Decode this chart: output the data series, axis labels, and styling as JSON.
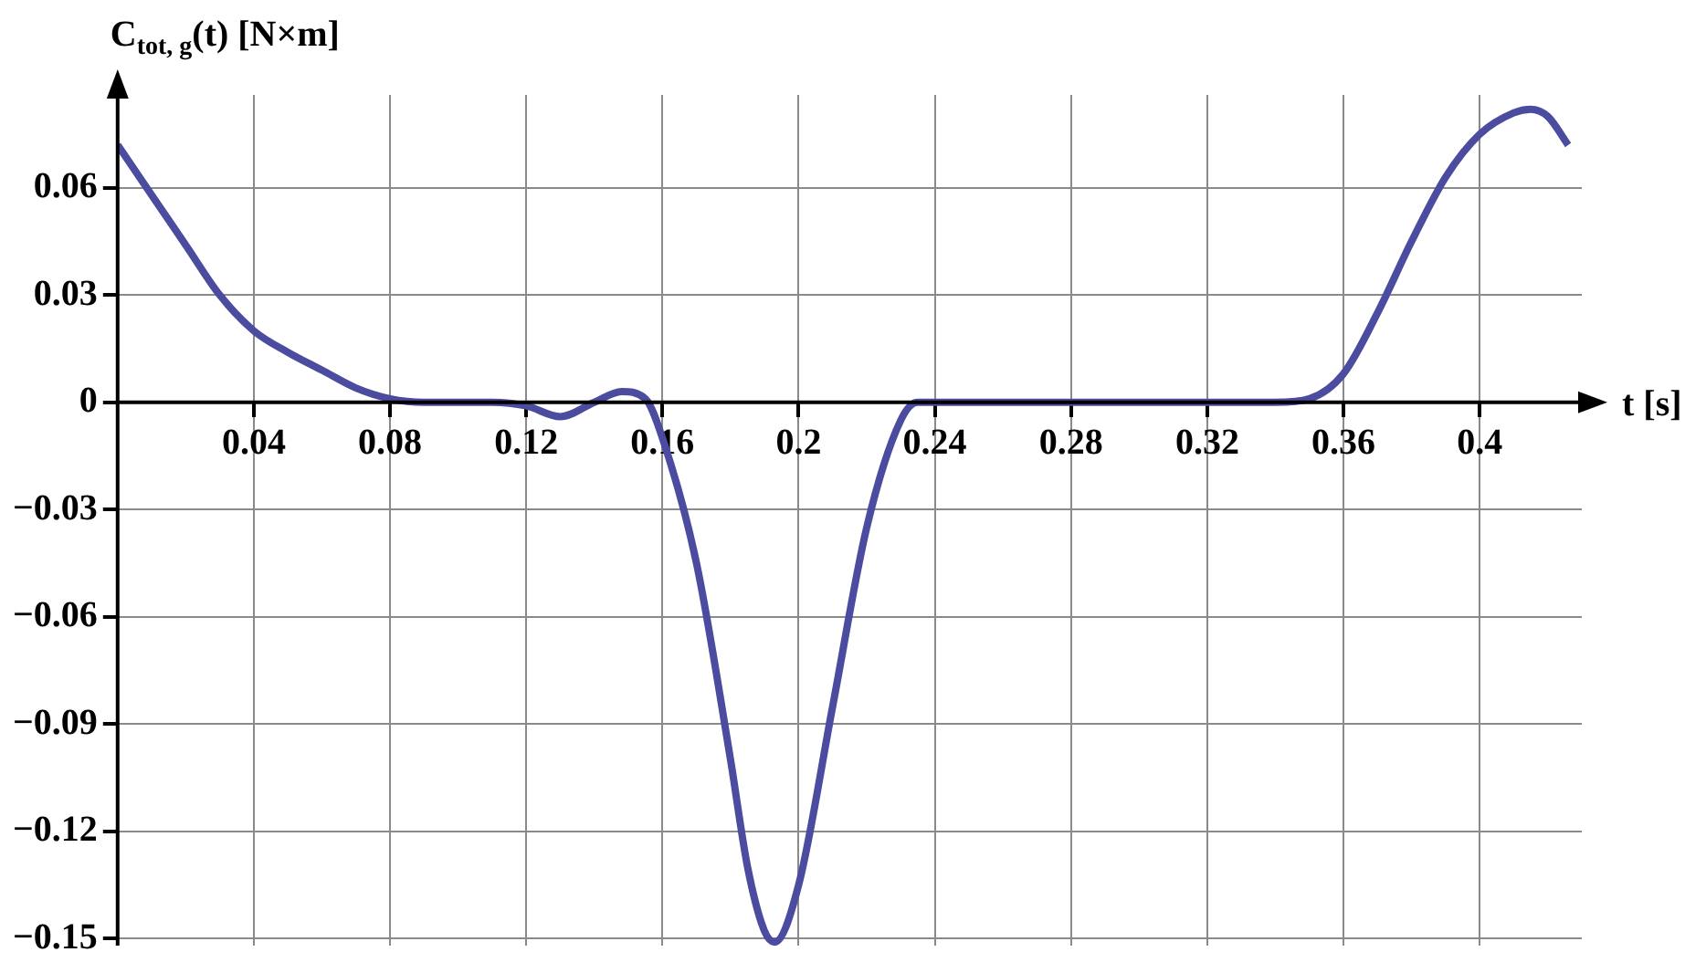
{
  "chart_data": {
    "type": "line",
    "xlabel": "t [s]",
    "ylabel": "C$_{tot, g}$(t) [N×m]",
    "color": "#4b4ba0",
    "grid": true,
    "legend": false,
    "marker": "none",
    "line_style": "solid",
    "x": [
      0,
      0.01,
      0.02,
      0.03,
      0.04,
      0.05,
      0.06,
      0.07,
      0.08,
      0.09,
      0.1,
      0.11,
      0.12,
      0.13,
      0.14,
      0.148,
      0.155,
      0.16,
      0.17,
      0.18,
      0.185,
      0.19,
      0.193,
      0.2,
      0.21,
      0.22,
      0.23,
      0.235,
      0.25,
      0.28,
      0.31,
      0.34,
      0.35,
      0.36,
      0.37,
      0.38,
      0.39,
      0.4,
      0.41,
      0.415,
      0.42,
      0.426
    ],
    "values": [
      0.072,
      0.058,
      0.044,
      0.03,
      0.02,
      0.014,
      0.009,
      0.004,
      0.001,
      0,
      0,
      0,
      -0.001,
      -0.004,
      0,
      0.003,
      0.001,
      -0.01,
      -0.045,
      -0.1,
      -0.13,
      -0.148,
      -0.151,
      -0.135,
      -0.085,
      -0.035,
      -0.005,
      0,
      0,
      0,
      0,
      0,
      0.001,
      0.008,
      0.025,
      0.045,
      0.063,
      0.075,
      0.081,
      0.082,
      0.08,
      0.072
    ],
    "xlim": [
      0,
      0.43
    ],
    "xticks": [
      0.04,
      0.08,
      0.12,
      0.16,
      0.2,
      0.24,
      0.28,
      0.32,
      0.36,
      0.4
    ],
    "ylim": [
      -0.152,
      0.086
    ],
    "yticks": [
      {
        "value": -0.15,
        "label": "−0.15"
      },
      {
        "value": -0.12,
        "label": "−0.12"
      },
      {
        "value": -0.09,
        "label": "−0.09"
      },
      {
        "value": -0.06,
        "label": "−0.06"
      },
      {
        "value": -0.03,
        "label": "−0.03"
      },
      0,
      0.03,
      0.06
    ]
  }
}
